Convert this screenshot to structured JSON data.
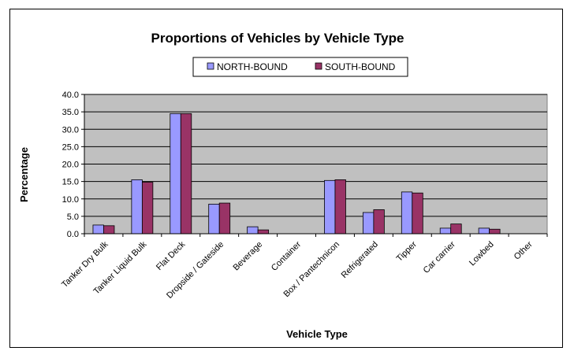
{
  "chart_data": {
    "type": "bar",
    "title": "Proportions of Vehicles by Vehicle Type",
    "xlabel": "Vehicle Type",
    "ylabel": "Percentage",
    "ylim": [
      0,
      40
    ],
    "yticks": [
      "0.0",
      "5.0",
      "10.0",
      "15.0",
      "20.0",
      "25.0",
      "30.0",
      "35.0",
      "40.0"
    ],
    "grid": true,
    "legend_position": "top",
    "plot_background": "#c0c0c0",
    "categories": [
      "Tanker Dry Bulk",
      "Tanker Liquid Bulk",
      "Flat Deck",
      "Dropside / Gateside",
      "Beverage",
      "Container",
      "Box / Pantechnicon",
      "Refrigerated",
      "Tipper",
      "Car carrier",
      "Lowbed",
      "Other"
    ],
    "series": [
      {
        "name": "NORTH-BOUND",
        "color": "#9999ff",
        "values": [
          2.5,
          15.5,
          34.5,
          8.5,
          2.0,
          0.0,
          15.3,
          6.1,
          12.0,
          1.6,
          1.6,
          0.0
        ]
      },
      {
        "name": "SOUTH-BOUND",
        "color": "#993366",
        "values": [
          2.3,
          14.8,
          34.5,
          8.8,
          1.1,
          0.0,
          15.5,
          6.9,
          11.7,
          2.8,
          1.3,
          0.0
        ]
      }
    ]
  }
}
